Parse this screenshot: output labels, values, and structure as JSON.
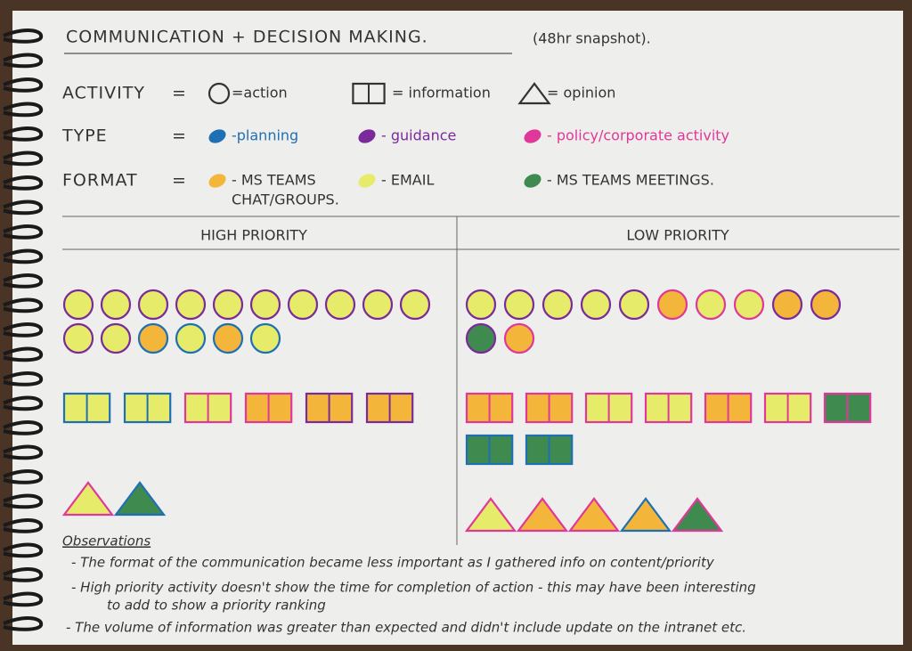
{
  "header": {
    "title": "COMMUNICATION + DECISION MAKING.",
    "subtitle": "(48hr snapshot)."
  },
  "legend": [
    {
      "label": "ACTIVITY",
      "eq": "=",
      "entries": [
        {
          "symbol": "circle",
          "text": "=action"
        },
        {
          "symbol": "rect",
          "text": "= information"
        },
        {
          "symbol": "triangle",
          "text": "= opinion"
        }
      ]
    },
    {
      "label": "TYPE",
      "eq": "=",
      "entries": [
        {
          "color": "#1f6fb5",
          "text": "-planning"
        },
        {
          "color": "#7a2a9a",
          "text": "- guidance"
        },
        {
          "color": "#e0389a",
          "text": "- policy/corporate activity"
        }
      ]
    },
    {
      "label": "FORMAT",
      "eq": "=",
      "entries": [
        {
          "color": "#f3b63a",
          "text": "- MS TEAMS",
          "text2": "CHAT/GROUPS."
        },
        {
          "color": "#e6ec6a",
          "text": "- EMAIL"
        },
        {
          "color": "#3f8a4f",
          "text": "- MS TEAMS MEETINGS."
        }
      ]
    }
  ],
  "columns": [
    {
      "title": "HIGH PRIORITY",
      "groups": [
        {
          "shape": "circle",
          "rows": [
            [
              [
                "#7a2a9a",
                "#e6ec6a"
              ],
              [
                "#7a2a9a",
                "#e6ec6a"
              ],
              [
                "#7a2a9a",
                "#e6ec6a"
              ],
              [
                "#7a2a9a",
                "#e6ec6a"
              ],
              [
                "#7a2a9a",
                "#e6ec6a"
              ],
              [
                "#7a2a9a",
                "#e6ec6a"
              ],
              [
                "#7a2a9a",
                "#e6ec6a"
              ],
              [
                "#7a2a9a",
                "#e6ec6a"
              ],
              [
                "#7a2a9a",
                "#e6ec6a"
              ],
              [
                "#7a2a9a",
                "#e6ec6a"
              ]
            ],
            [
              [
                "#7a2a9a",
                "#e6ec6a"
              ],
              [
                "#7a2a9a",
                "#e6ec6a"
              ],
              [
                "#1f6fb5",
                "#f3b63a"
              ],
              [
                "#1f6fb5",
                "#e6ec6a"
              ],
              [
                "#1f6fb5",
                "#f3b63a"
              ],
              [
                "#1f6fb5",
                "#e6ec6a"
              ]
            ]
          ]
        },
        {
          "shape": "rect",
          "rows": [
            [
              [
                "#1f6fb5",
                "#e6ec6a"
              ],
              [
                "#1f6fb5",
                "#e6ec6a"
              ],
              [
                "#e0389a",
                "#e6ec6a"
              ],
              [
                "#e0389a",
                "#f3b63a"
              ],
              [
                "#7a2a9a",
                "#f3b63a"
              ],
              [
                "#7a2a9a",
                "#f3b63a"
              ]
            ]
          ]
        },
        {
          "shape": "triangle",
          "rows": [
            [
              [
                "#e0389a",
                "#e6ec6a"
              ],
              [
                "#1f6fb5",
                "#3f8a4f"
              ]
            ]
          ]
        }
      ]
    },
    {
      "title": "LOW PRIORITY",
      "groups": [
        {
          "shape": "circle",
          "rows": [
            [
              [
                "#7a2a9a",
                "#e6ec6a"
              ],
              [
                "#7a2a9a",
                "#e6ec6a"
              ],
              [
                "#7a2a9a",
                "#e6ec6a"
              ],
              [
                "#7a2a9a",
                "#e6ec6a"
              ],
              [
                "#7a2a9a",
                "#e6ec6a"
              ],
              [
                "#e0389a",
                "#f3b63a"
              ],
              [
                "#e0389a",
                "#e6ec6a"
              ],
              [
                "#e0389a",
                "#e6ec6a"
              ],
              [
                "#7a2a9a",
                "#f3b63a"
              ],
              [
                "#7a2a9a",
                "#f3b63a"
              ]
            ],
            [
              [
                "#7a2a9a",
                "#3f8a4f"
              ],
              [
                "#e0389a",
                "#f3b63a"
              ]
            ]
          ]
        },
        {
          "shape": "rect",
          "rows": [
            [
              [
                "#e0389a",
                "#f3b63a"
              ],
              [
                "#e0389a",
                "#f3b63a"
              ],
              [
                "#e0389a",
                "#e6ec6a"
              ],
              [
                "#e0389a",
                "#e6ec6a"
              ],
              [
                "#e0389a",
                "#f3b63a"
              ],
              [
                "#e0389a",
                "#e6ec6a"
              ],
              [
                "#e0389a",
                "#3f8a4f"
              ]
            ],
            [
              [
                "#1f6fb5",
                "#3f8a4f"
              ],
              [
                "#1f6fb5",
                "#3f8a4f"
              ]
            ]
          ]
        },
        {
          "shape": "triangle",
          "rows": [
            [
              [
                "#e0389a",
                "#e6ec6a"
              ],
              [
                "#e0389a",
                "#f3b63a"
              ],
              [
                "#e0389a",
                "#f3b63a"
              ],
              [
                "#1f6fb5",
                "#f3b63a"
              ],
              [
                "#e0389a",
                "#3f8a4f"
              ]
            ]
          ]
        }
      ]
    }
  ],
  "observations": {
    "heading": "Observations",
    "lines": [
      "- The format of the communication became less important as I gathered info on content/priority",
      "- High priority activity doesn't show the time for completion of action - this may have been interesting",
      "to add to show a priority ranking",
      "- The volume of information was greater than expected and didn't include update on the intranet etc."
    ]
  }
}
